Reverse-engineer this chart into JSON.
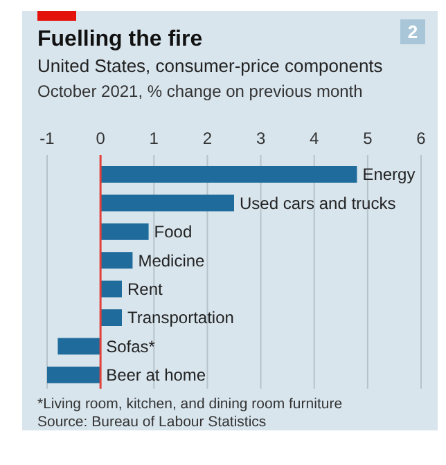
{
  "chart_data": {
    "type": "bar",
    "orientation": "horizontal",
    "title": "Fuelling the fire",
    "subtitle": "United States, consumer-price components",
    "xlabel": "October 2021, % change on previous month",
    "categories": [
      "Energy",
      "Used cars and trucks",
      "Food",
      "Medicine",
      "Rent",
      "Transportation",
      "Sofas*",
      "Beer at home"
    ],
    "values": [
      4.8,
      2.5,
      0.9,
      0.6,
      0.4,
      0.4,
      -0.8,
      -1.0
    ],
    "color": "#1f6b9c",
    "xlim": [
      -1,
      6
    ],
    "xticks": [
      -1,
      0,
      1,
      2,
      3,
      4,
      5,
      6
    ],
    "grid": "x",
    "annotations": [
      "2",
      "*Living room, kitchen, and dining room furniture",
      "Source: Bureau of Labour Statistics"
    ]
  }
}
